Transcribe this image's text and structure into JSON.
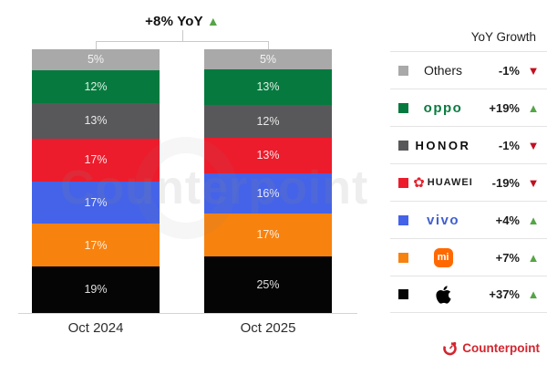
{
  "chart_data": {
    "type": "bar",
    "subtype": "stacked-column",
    "annotation": "+8% YoY",
    "legend_title": "YoY Growth",
    "categories": [
      "Oct 2024",
      "Oct 2025"
    ],
    "unit": "%",
    "series": [
      {
        "name": "Others",
        "color": "#a9a9a9",
        "values": [
          5,
          5
        ],
        "yoy": "-1%",
        "direction": "down",
        "logo": {
          "kind": "plain",
          "text": "Others"
        }
      },
      {
        "name": "OPPO",
        "color": "#067a3e",
        "values": [
          12,
          13
        ],
        "yoy": "+19%",
        "direction": "up",
        "logo": {
          "kind": "oppo",
          "text": "oppo"
        }
      },
      {
        "name": "HONOR",
        "color": "#58585a",
        "values": [
          13,
          12
        ],
        "yoy": "-1%",
        "direction": "down",
        "logo": {
          "kind": "honor",
          "text": "HONOR"
        }
      },
      {
        "name": "HUAWEI",
        "color": "#ec1c2c",
        "values": [
          17,
          13
        ],
        "yoy": "-19%",
        "direction": "down",
        "logo": {
          "kind": "huawei",
          "text": "HUAWEI"
        }
      },
      {
        "name": "vivo",
        "color": "#4463e8",
        "values": [
          17,
          16
        ],
        "yoy": "+4%",
        "direction": "up",
        "logo": {
          "kind": "vivo",
          "text": "vivo"
        }
      },
      {
        "name": "Xiaomi",
        "color": "#f8820e",
        "values": [
          17,
          17
        ],
        "yoy": "+7%",
        "direction": "up",
        "logo": {
          "kind": "mi",
          "text": "mi"
        }
      },
      {
        "name": "Apple",
        "color": "#050505",
        "values": [
          19,
          25
        ],
        "yoy": "+37%",
        "direction": "up",
        "logo": {
          "kind": "apple",
          "text": ""
        }
      }
    ],
    "ylim": [
      0,
      100
    ],
    "grid": false,
    "legend_position": "right"
  },
  "icons": {
    "up_triangle": "▲",
    "down_triangle": "▼",
    "huawei_flower": "✿"
  },
  "colors": {
    "up": "#55a546",
    "down": "#c01020",
    "counterpoint_red": "#d22630"
  },
  "watermark": {
    "text": "Counterpoint"
  },
  "footer": {
    "brand": "Counterpoint"
  }
}
